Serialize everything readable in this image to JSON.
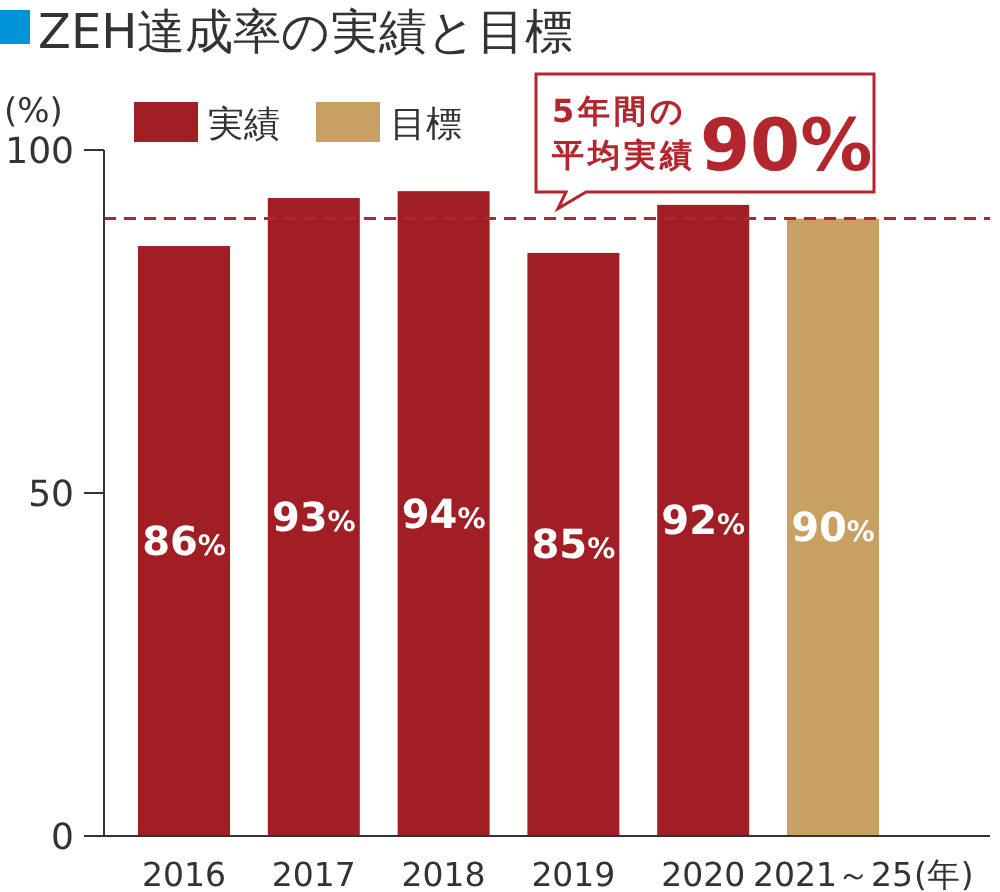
{
  "chart_data": {
    "type": "bar",
    "title": "ZEH達成率の実績と目標",
    "ylabel": "(%)",
    "xlabel": "(年)",
    "categories": [
      "2016",
      "2017",
      "2018",
      "2019",
      "2020",
      "2021～25"
    ],
    "series": [
      {
        "name": "実績",
        "color": "#a11f24",
        "values": [
          86,
          93,
          94,
          85,
          92,
          null
        ],
        "value_labels": [
          "86%",
          "93%",
          "94%",
          "85%",
          "92%",
          null
        ]
      },
      {
        "name": "目標",
        "color": "#c9a063",
        "values": [
          null,
          null,
          null,
          null,
          null,
          90
        ],
        "value_labels": [
          null,
          null,
          null,
          null,
          null,
          "90%"
        ]
      }
    ],
    "stacked": true,
    "ylim": [
      0,
      100
    ],
    "yticks": [
      0,
      50,
      100
    ],
    "legend": "top left",
    "ref_lines": [
      {
        "axis": "y",
        "value": 90,
        "label": "5年間の平均実績90%",
        "color": "#b3262d",
        "line_style": "dashed"
      }
    ]
  }
}
